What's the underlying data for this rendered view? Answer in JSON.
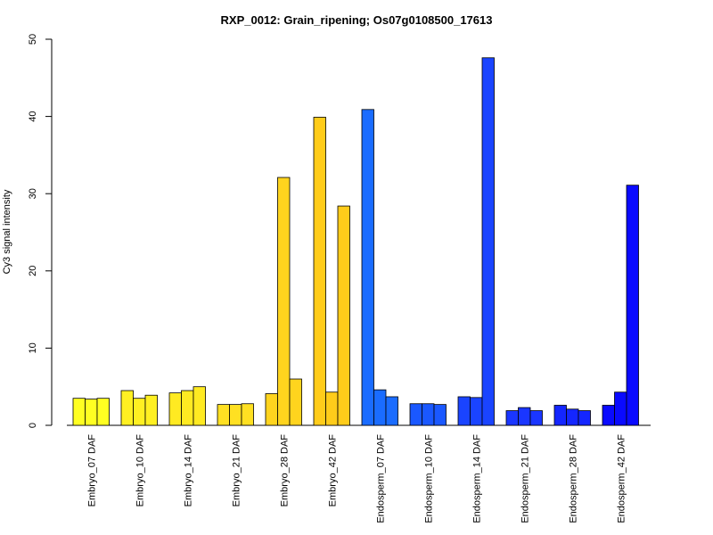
{
  "chart_data": {
    "type": "bar",
    "title": "RXP_0012: Grain_ripening; Os07g0108500_17613",
    "xlabel": "",
    "ylabel": "Cy3 signal intensity",
    "ylim": [
      0,
      50
    ],
    "yticks": [
      0,
      10,
      20,
      30,
      40,
      50
    ],
    "grid": false,
    "legend": "none",
    "groups": [
      {
        "label": "Embryo_07 DAF",
        "values": [
          3.5,
          3.4,
          3.5
        ],
        "color": "#ffff22"
      },
      {
        "label": "Embryo_10 DAF",
        "values": [
          4.5,
          3.5,
          3.9
        ],
        "color": "#fff022"
      },
      {
        "label": "Embryo_14 DAF",
        "values": [
          4.2,
          4.5,
          5.0
        ],
        "color": "#ffea22"
      },
      {
        "label": "Embryo_21 DAF",
        "values": [
          2.7,
          2.7,
          2.8
        ],
        "color": "#ffe022"
      },
      {
        "label": "Embryo_28 DAF",
        "values": [
          4.1,
          32.1,
          6.0
        ],
        "color": "#ffd41e"
      },
      {
        "label": "Embryo_42 DAF",
        "values": [
          39.9,
          4.3,
          28.4
        ],
        "color": "#ffcc1a"
      },
      {
        "label": "Endosperm_07 DAF",
        "values": [
          40.9,
          4.6,
          3.7
        ],
        "color": "#1a6cff"
      },
      {
        "label": "Endosperm_10 DAF",
        "values": [
          2.8,
          2.8,
          2.7
        ],
        "color": "#1a58ff"
      },
      {
        "label": "Endosperm_14 DAF",
        "values": [
          3.7,
          3.6,
          47.6
        ],
        "color": "#1a44ff"
      },
      {
        "label": "Endosperm_21 DAF",
        "values": [
          1.9,
          2.3,
          1.9
        ],
        "color": "#1a36ff"
      },
      {
        "label": "Endosperm_28 DAF",
        "values": [
          2.6,
          2.1,
          1.9
        ],
        "color": "#1426ff"
      },
      {
        "label": "Endosperm_42 DAF",
        "values": [
          2.6,
          4.3,
          31.1
        ],
        "color": "#0a0aff"
      }
    ]
  }
}
